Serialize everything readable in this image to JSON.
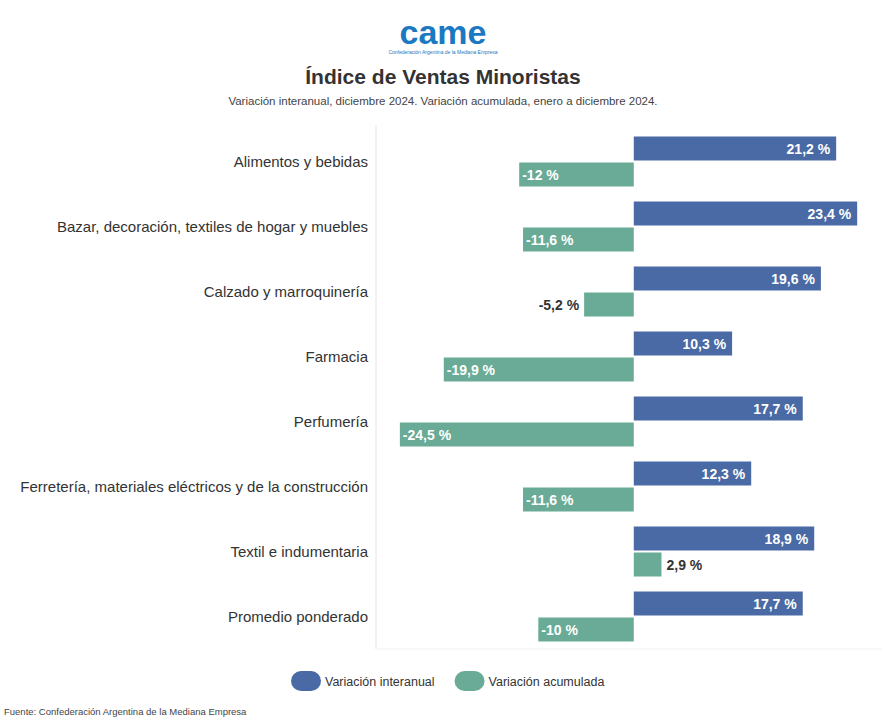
{
  "chart_data": {
    "type": "bar",
    "orientation": "horizontal",
    "logo": "came",
    "logo_caption": "Confederación Argentina de la Mediana Empresa",
    "title": "Índice de Ventas Minoristas",
    "subtitle": "Variación interanual, diciembre 2024. Variación acumulada, enero a diciembre 2024.",
    "source": "Fuente: Confederación Argentina de la Mediana Empresa",
    "categories": [
      "Alimentos y bebidas",
      "Bazar, decoración, textiles de hogar y muebles",
      "Calzado y marroquinería",
      "Farmacia",
      "Perfumería",
      "Ferretería, materiales eléctricos y de la construcción",
      "Textil e indumentaria",
      "Promedio ponderado"
    ],
    "series": [
      {
        "name": "Variación interanual",
        "color": "#4a6aa5",
        "values": [
          21.2,
          23.4,
          19.6,
          10.3,
          17.7,
          12.3,
          18.9,
          17.7
        ],
        "value_labels": [
          "21,2 %",
          "23,4 %",
          "19,6 %",
          "10,3 %",
          "17,7 %",
          "12,3 %",
          "18,9 %",
          "17,7 %"
        ]
      },
      {
        "name": "Variación acumulada",
        "color": "#69ab96",
        "values": [
          -12,
          -11.6,
          -5.2,
          -19.9,
          -24.5,
          -11.6,
          2.9,
          -10
        ],
        "value_labels": [
          "-12 %",
          "-11,6 %",
          "-5,2 %",
          "-19,9 %",
          "-24,5 %",
          "-11,6 %",
          "2,9 %",
          "-10 %"
        ]
      }
    ],
    "xlim": [
      -27,
      26
    ],
    "data_labels": true,
    "tick_labels": false,
    "legend": "bottom"
  }
}
